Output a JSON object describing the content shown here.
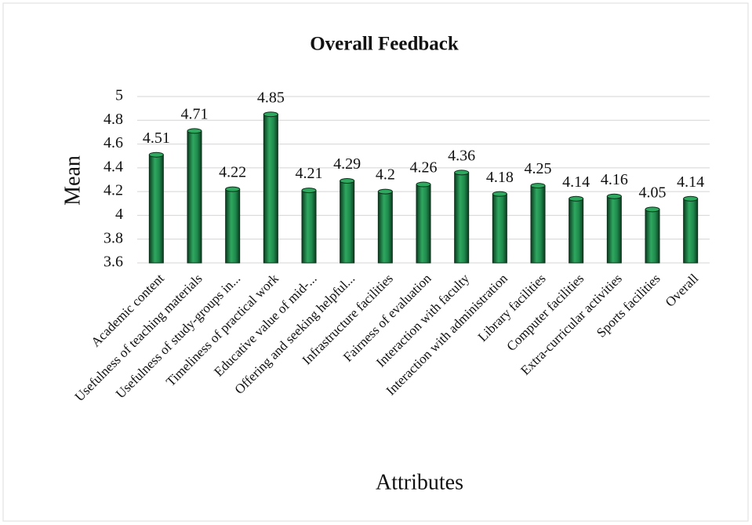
{
  "chart_data": {
    "type": "bar",
    "title": "Overall Feedback",
    "x_label": "Attributes",
    "y_label": "Mean",
    "categories": [
      "Academic content",
      "Usefulness of teaching materials",
      "Usefulness of study-groups in...",
      "Timeliness of practical work",
      "Educative value of mid-...",
      "Offering and seeking helpful...",
      "Infrastructure facilities",
      "Fairness of evaluation",
      "Interaction with faculty",
      "Interaction with administration",
      "Library facilities",
      "Computer facilities",
      "Extra-curricular activities",
      "Sports facilities",
      "Overall"
    ],
    "values": [
      4.51,
      4.71,
      4.22,
      4.85,
      4.21,
      4.29,
      4.2,
      4.26,
      4.36,
      4.18,
      4.25,
      4.14,
      4.16,
      4.05,
      4.14
    ],
    "color": "#1f8a4c",
    "ylim": [
      3.6,
      5
    ],
    "yticks": [
      3.6,
      3.8,
      4,
      4.2,
      4.4,
      4.6,
      4.8,
      5
    ],
    "grid": true
  }
}
